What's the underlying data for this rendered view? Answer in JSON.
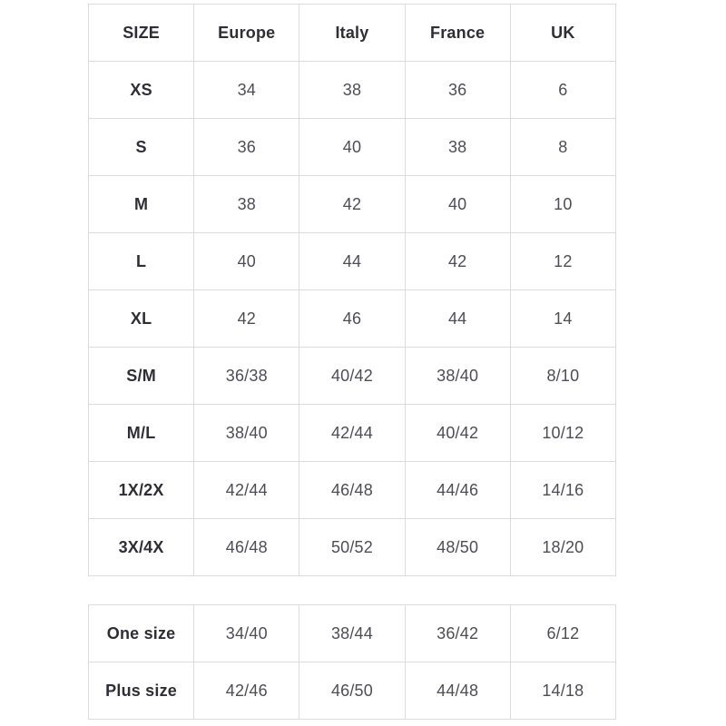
{
  "colors": {
    "background": "#ffffff",
    "border": "#dcdcdc",
    "label_text": "#2f2e36",
    "value_text": "#4e4d56"
  },
  "chart_data": [
    {
      "type": "table",
      "columns": [
        "SIZE",
        "Europe",
        "Italy",
        "France",
        "UK"
      ],
      "rows": [
        [
          "XS",
          "34",
          "38",
          "36",
          "6"
        ],
        [
          "S",
          "36",
          "40",
          "38",
          "8"
        ],
        [
          "M",
          "38",
          "42",
          "40",
          "10"
        ],
        [
          "L",
          "40",
          "44",
          "42",
          "12"
        ],
        [
          "XL",
          "42",
          "46",
          "44",
          "14"
        ],
        [
          "S/M",
          "36/38",
          "40/42",
          "38/40",
          "8/10"
        ],
        [
          "M/L",
          "38/40",
          "42/44",
          "40/42",
          "10/12"
        ],
        [
          "1X/2X",
          "42/44",
          "46/48",
          "44/46",
          "14/16"
        ],
        [
          "3X/4X",
          "46/48",
          "50/52",
          "48/50",
          "18/20"
        ]
      ],
      "layout": {
        "grid": true,
        "header_row": true,
        "bold_first_column": true
      }
    },
    {
      "type": "table",
      "columns": [],
      "rows": [
        [
          "One size",
          "34/40",
          "38/44",
          "36/42",
          "6/12"
        ],
        [
          "Plus size",
          "42/46",
          "46/50",
          "44/48",
          "14/18"
        ]
      ],
      "layout": {
        "grid": true,
        "header_row": false,
        "bold_first_column": true
      }
    }
  ]
}
